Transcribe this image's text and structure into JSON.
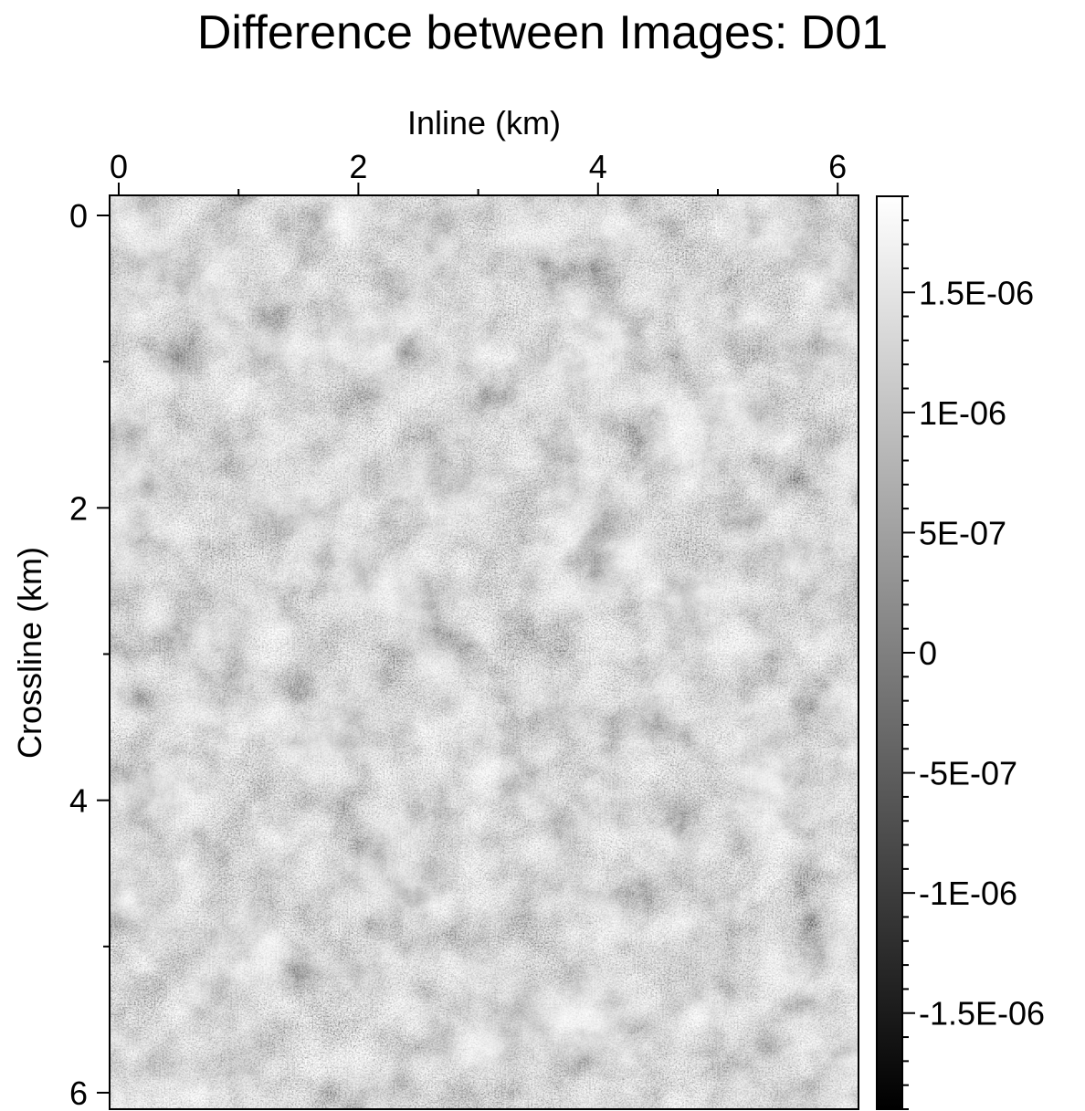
{
  "chart_data": {
    "type": "heatmap",
    "title": "Difference between Images: D01",
    "xlabel": "Inline (km)",
    "ylabel": "Crossline (km)",
    "xlim": [
      0,
      6.25
    ],
    "ylim": [
      0,
      6.25
    ],
    "x_axis_position": "top",
    "y_axis_inverted": true,
    "x_ticks": [
      0,
      2,
      4,
      6
    ],
    "y_ticks": [
      0,
      2,
      4,
      6
    ],
    "x_minor_step": 1,
    "y_minor_step": 1,
    "colormap": "grayscale",
    "colormap_low_color": "#000000",
    "colormap_high_color": "#ffffff",
    "colorbar": {
      "range": [
        -1.9e-06,
        1.9e-06
      ],
      "ticks": [
        {
          "value": 1.5e-06,
          "label": "1.5E-06"
        },
        {
          "value": 1e-06,
          "label": "1E-06"
        },
        {
          "value": 5e-07,
          "label": "5E-07"
        },
        {
          "value": 0,
          "label": "0"
        },
        {
          "value": -5e-07,
          "label": "-5E-07"
        },
        {
          "value": -1e-06,
          "label": "-1E-06"
        },
        {
          "value": -1.5e-06,
          "label": "-1.5E-06"
        }
      ],
      "minor_step": 1e-07
    },
    "grid": false
  }
}
